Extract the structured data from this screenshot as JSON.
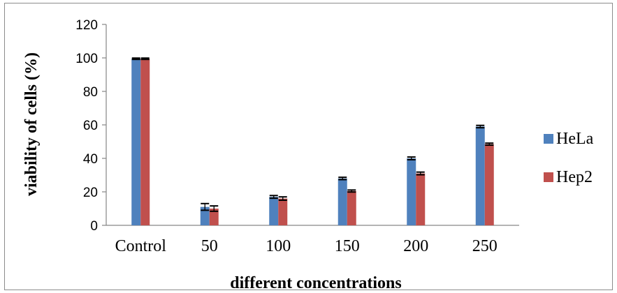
{
  "chart_data": {
    "type": "bar",
    "xlabel": "different concentrations",
    "ylabel": "viability of cells (%)",
    "ylim": [
      0,
      120
    ],
    "yticks": [
      0,
      20,
      40,
      60,
      80,
      100,
      120
    ],
    "categories": [
      "Control",
      "50",
      "100",
      "150",
      "200",
      "250"
    ],
    "series": [
      {
        "name": "HeLa",
        "color": "#4f81bd",
        "values": [
          99.5,
          11,
          17,
          28,
          40,
          59
        ],
        "errors": [
          0.4,
          2,
          0.8,
          0.7,
          0.8,
          0.7
        ]
      },
      {
        "name": "Hep2",
        "color": "#c0504d",
        "values": [
          99.5,
          10,
          16,
          20.5,
          31,
          48.5
        ],
        "errors": [
          0.4,
          1.6,
          1,
          0.6,
          0.8,
          0.6
        ]
      }
    ],
    "legend_position": "right",
    "grid": false
  }
}
